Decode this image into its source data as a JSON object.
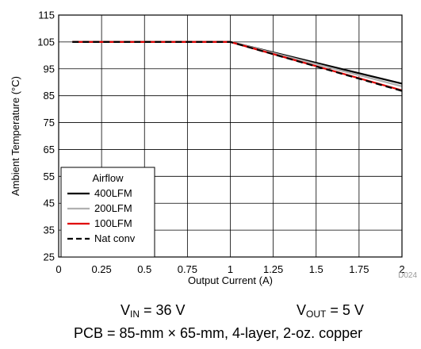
{
  "chart_data": {
    "type": "line",
    "xlabel": "Output Current (A)",
    "ylabel": "Ambient Temperature (°C)",
    "xlim": [
      0,
      2
    ],
    "ylim": [
      25,
      115
    ],
    "x_ticks": [
      0,
      0.25,
      0.5,
      0.75,
      1,
      1.25,
      1.5,
      1.75,
      2
    ],
    "y_ticks": [
      25,
      35,
      45,
      55,
      65,
      75,
      85,
      95,
      105,
      115
    ],
    "x_tick_labels": [
      "0",
      "0.25",
      "0.5",
      "0.75",
      "1",
      "1.25",
      "1.5",
      "1.75",
      "2"
    ],
    "y_tick_labels": [
      "25",
      "35",
      "45",
      "55",
      "65",
      "75",
      "85",
      "95",
      "105",
      "115"
    ],
    "grid": true,
    "legend": {
      "title": "Airflow",
      "placement": "bottom-left"
    },
    "series": [
      {
        "name": "400LFM",
        "color": "#000000",
        "dash": "solid",
        "x": [
          0.08,
          1.0,
          2.0
        ],
        "y": [
          105,
          105,
          89.5
        ]
      },
      {
        "name": "200LFM",
        "color": "#b0b0b0",
        "dash": "solid",
        "x": [
          0.08,
          1.0,
          2.0
        ],
        "y": [
          105,
          105,
          88.5
        ]
      },
      {
        "name": "100LFM",
        "color": "#e00000",
        "dash": "solid",
        "x": [
          0.08,
          1.0,
          2.0
        ],
        "y": [
          105,
          105,
          87.0
        ]
      },
      {
        "name": "Nat conv",
        "color": "#000000",
        "dash": "dashed",
        "x": [
          0.08,
          1.0,
          2.0
        ],
        "y": [
          105,
          105,
          86.8
        ]
      }
    ],
    "figure_id": "D024"
  },
  "captions": {
    "vin_main": "V",
    "vin_sub": "IN",
    "vin_value": " = 36 V",
    "vout_main": "V",
    "vout_sub": "OUT",
    "vout_value": " = 5 V",
    "pcb": "PCB = 85-mm × 65-mm, 4-layer, 2-oz. copper"
  }
}
